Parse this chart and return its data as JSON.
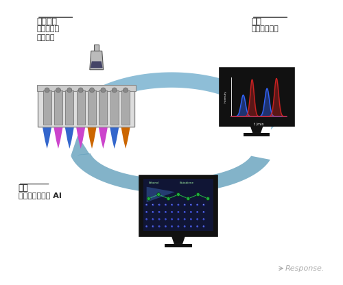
{
  "bg_color": "#ffffff",
  "fig_width": 5.0,
  "fig_height": 4.16,
  "dpi": 100,
  "label_process_title": "プロセス",
  "label_process_body": "多検体高速\n同時実験",
  "label_measure_title": "計測",
  "label_measure_body": "自動反応解析",
  "label_calc_title": "計算",
  "label_calc_body": "量子化学計算， AI",
  "label_response": "Response.",
  "arrow_color": "#7ab3d0",
  "arrow_dark": "#5a9ab8",
  "colors_tubes": [
    "#3366cc",
    "#cc44cc",
    "#3366cc",
    "#cc44cc",
    "#cc6600",
    "#cc44cc",
    "#3366cc",
    "#cc6600"
  ],
  "spectrum_blue": "#3366ff",
  "spectrum_red": "#cc2222",
  "molecule_color": "#22aa44",
  "catalyst_color": "#3344cc",
  "text_color_dark": "#222222",
  "text_color_title": "#222222",
  "font_size_title": 9,
  "font_size_body": 8,
  "font_size_response": 8
}
